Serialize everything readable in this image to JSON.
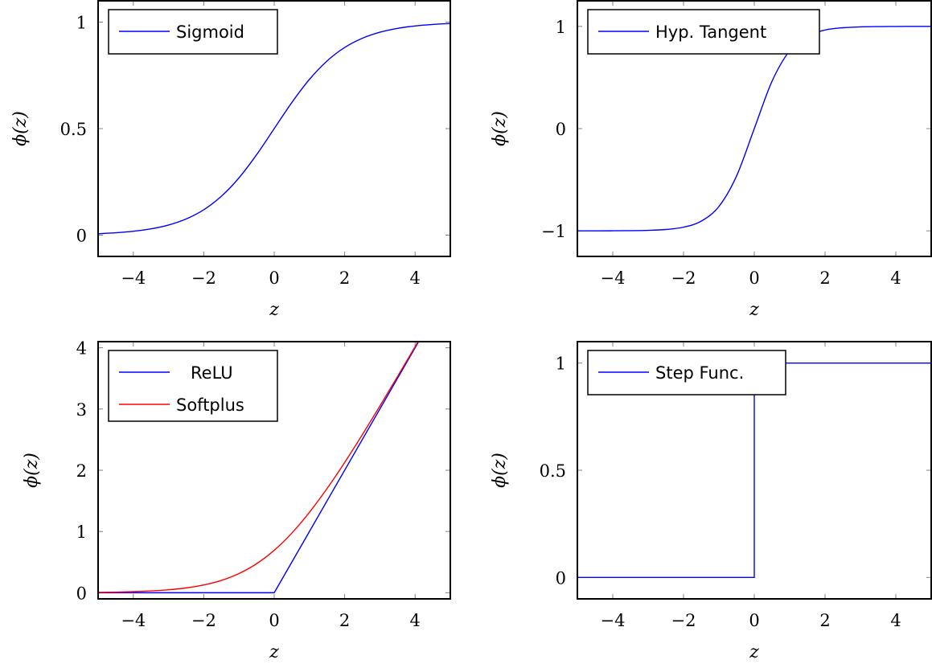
{
  "chart_data": [
    {
      "type": "line",
      "title": "",
      "xlabel": "z",
      "ylabel": "ϕ(z)",
      "xlim": [
        -5,
        5
      ],
      "ylim": [
        -0.1,
        1.1
      ],
      "xticks": [
        -4,
        -2,
        0,
        2,
        4
      ],
      "xtick_labels": [
        "−4",
        "−2",
        "0",
        "2",
        "4"
      ],
      "yticks": [
        0,
        0.5,
        1
      ],
      "ytick_labels": [
        "0",
        "0.5",
        "1"
      ],
      "legend_position": "top-left",
      "series": [
        {
          "name": "Sigmoid",
          "color": "#0000ff",
          "x": [
            -5,
            -4.5,
            -4,
            -3.5,
            -3,
            -2.5,
            -2,
            -1.5,
            -1,
            -0.5,
            0,
            0.5,
            1,
            1.5,
            2,
            2.5,
            3,
            3.5,
            4,
            4.5,
            5
          ],
          "y": [
            0.0067,
            0.011,
            0.018,
            0.0293,
            0.0474,
            0.0759,
            0.1192,
            0.1824,
            0.2689,
            0.3775,
            0.5,
            0.6225,
            0.7311,
            0.8176,
            0.8808,
            0.9241,
            0.9526,
            0.9707,
            0.982,
            0.989,
            0.9933
          ]
        }
      ]
    },
    {
      "type": "line",
      "title": "",
      "xlabel": "z",
      "ylabel": "ϕ(z)",
      "xlim": [
        -5,
        5
      ],
      "ylim": [
        -1.25,
        1.25
      ],
      "xticks": [
        -4,
        -2,
        0,
        2,
        4
      ],
      "xtick_labels": [
        "−4",
        "−2",
        "0",
        "2",
        "4"
      ],
      "yticks": [
        -1,
        0,
        1
      ],
      "ytick_labels": [
        "−1",
        "0",
        "1"
      ],
      "legend_position": "top-left",
      "series": [
        {
          "name": "Hyp. Tangent",
          "color": "#0000ff",
          "x": [
            -5,
            -4.5,
            -4,
            -3.5,
            -3,
            -2.5,
            -2,
            -1.5,
            -1,
            -0.5,
            0,
            0.5,
            1,
            1.5,
            2,
            2.5,
            3,
            3.5,
            4,
            4.5,
            5
          ],
          "y": [
            -0.9999,
            -0.9998,
            -0.9993,
            -0.9982,
            -0.9951,
            -0.9866,
            -0.964,
            -0.9051,
            -0.7616,
            -0.4621,
            0,
            0.4621,
            0.7616,
            0.9051,
            0.964,
            0.9866,
            0.9951,
            0.9982,
            0.9993,
            0.9998,
            0.9999
          ]
        }
      ]
    },
    {
      "type": "line",
      "title": "",
      "xlabel": "z",
      "ylabel": "ϕ(z)",
      "xlim": [
        -5,
        5
      ],
      "ylim": [
        -0.1,
        4.1
      ],
      "xticks": [
        -4,
        -2,
        0,
        2,
        4
      ],
      "xtick_labels": [
        "−4",
        "−2",
        "0",
        "2",
        "4"
      ],
      "yticks": [
        0,
        1,
        2,
        3,
        4
      ],
      "ytick_labels": [
        "0",
        "1",
        "2",
        "3",
        "4"
      ],
      "legend_position": "top-left",
      "series": [
        {
          "name": "ReLU",
          "color": "#0000ff",
          "x": [
            -5,
            0,
            5
          ],
          "y": [
            0,
            0,
            5
          ],
          "linear": true
        },
        {
          "name": "Softplus",
          "color": "#ff0000",
          "x": [
            -5,
            -4.5,
            -4,
            -3.5,
            -3,
            -2.5,
            -2,
            -1.5,
            -1,
            -0.5,
            0,
            0.5,
            1,
            1.5,
            2,
            2.5,
            3,
            3.5,
            4,
            4.5,
            5
          ],
          "y": [
            0.0067,
            0.011,
            0.0181,
            0.0298,
            0.0486,
            0.0789,
            0.1269,
            0.2014,
            0.3133,
            0.4741,
            0.6931,
            0.9741,
            1.3133,
            1.7014,
            2.1269,
            2.5789,
            3.0486,
            3.5298,
            4.0181,
            4.511,
            5.0067
          ]
        }
      ]
    },
    {
      "type": "line",
      "title": "",
      "xlabel": "z",
      "ylabel": "ϕ(z)",
      "xlim": [
        -5,
        5
      ],
      "ylim": [
        -0.1,
        1.1
      ],
      "xticks": [
        -4,
        -2,
        0,
        2,
        4
      ],
      "xtick_labels": [
        "−4",
        "−2",
        "0",
        "2",
        "4"
      ],
      "yticks": [
        0,
        0.5,
        1
      ],
      "ytick_labels": [
        "0",
        "0.5",
        "1"
      ],
      "legend_position": "top-left",
      "series": [
        {
          "name": "Step Func.",
          "color": "#0000ff",
          "x": [
            -5,
            0,
            0,
            5
          ],
          "y": [
            0,
            0,
            1,
            1
          ],
          "linear": true
        }
      ]
    }
  ]
}
